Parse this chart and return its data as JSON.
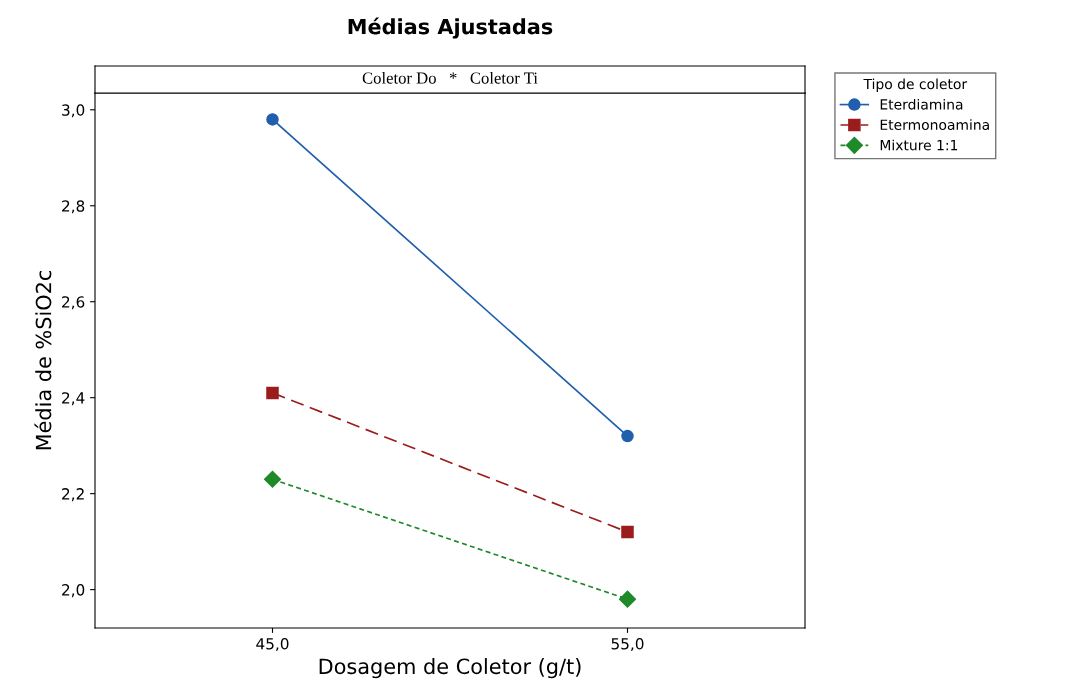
{
  "chart_data": {
    "type": "line",
    "title": "Médias Ajustadas",
    "subtitle": "Coletor Do   *   Coletor Ti",
    "xlabel": "Dosagem de Coletor (g/t)",
    "ylabel": "Média de %SiO2c",
    "legend_title": "Tipo de coletor",
    "legend": "top right",
    "grid": false,
    "x": [
      45,
      55
    ],
    "xlim": [
      40,
      60
    ],
    "xticks": [
      {
        "value": 45,
        "label": "45,0"
      },
      {
        "value": 55,
        "label": "55,0"
      }
    ],
    "ylim": [
      1.92,
      3.035
    ],
    "yticks": [
      {
        "value": 2.0,
        "label": "2,0"
      },
      {
        "value": 2.2,
        "label": "2,2"
      },
      {
        "value": 2.4,
        "label": "2,4"
      },
      {
        "value": 2.6,
        "label": "2,6"
      },
      {
        "value": 2.8,
        "label": "2,8"
      },
      {
        "value": 3.0,
        "label": "3,0"
      }
    ],
    "series": [
      {
        "name": "Eterdiamina",
        "color": "#1f5fad",
        "values": [
          2.98,
          2.32
        ],
        "marker": "circle",
        "line_style": "solid"
      },
      {
        "name": "Etermonoamina",
        "color": "#9b1c1c",
        "values": [
          2.41,
          2.12
        ],
        "marker": "square",
        "line_style": "dashed"
      },
      {
        "name": "Mixture 1:1",
        "color": "#1e8a2a",
        "values": [
          2.23,
          1.98
        ],
        "marker": "diamond",
        "line_style": "dotted"
      }
    ]
  }
}
